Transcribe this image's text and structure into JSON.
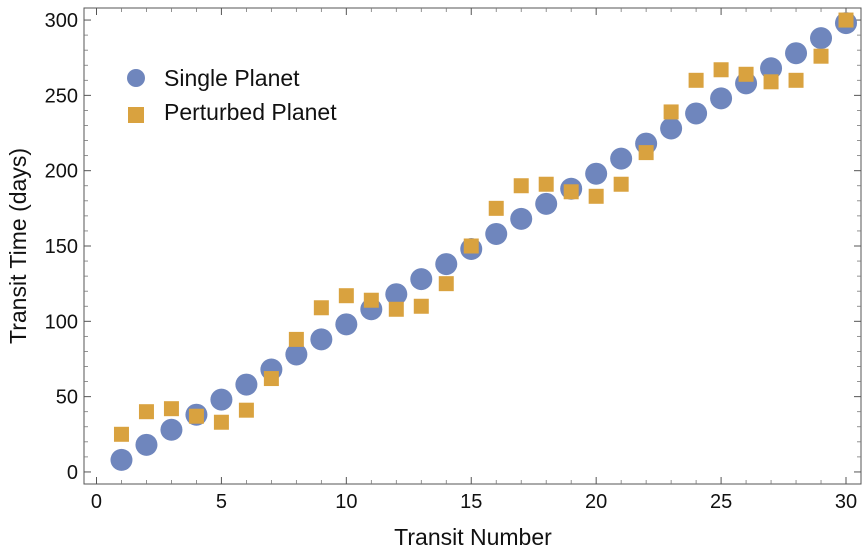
{
  "chart_data": {
    "type": "scatter",
    "title": "",
    "xlabel": "Transit Number",
    "ylabel": "Transit Time (days)",
    "xlim": [
      -0.5,
      30.6
    ],
    "ylim": [
      -8,
      308
    ],
    "xticks": [
      0,
      5,
      10,
      15,
      20,
      25,
      30
    ],
    "yticks": [
      0,
      50,
      100,
      150,
      200,
      250,
      300
    ],
    "grid": false,
    "legend_position": "top-left",
    "series": [
      {
        "name": "Single Planet",
        "marker": "circle",
        "color": "#6f86bd",
        "x": [
          1,
          2,
          3,
          4,
          5,
          6,
          7,
          8,
          9,
          10,
          11,
          12,
          13,
          14,
          15,
          16,
          17,
          18,
          19,
          20,
          21,
          22,
          23,
          24,
          25,
          26,
          27,
          28,
          29,
          30
        ],
        "y": [
          8,
          18,
          28,
          38,
          48,
          58,
          68,
          78,
          88,
          98,
          108,
          118,
          128,
          138,
          148,
          158,
          168,
          178,
          188,
          198,
          208,
          218,
          228,
          238,
          248,
          258,
          268,
          278,
          288,
          298
        ]
      },
      {
        "name": "Perturbed Planet",
        "marker": "square",
        "color": "#d9a23f",
        "x": [
          1,
          2,
          3,
          4,
          5,
          6,
          7,
          8,
          9,
          10,
          11,
          12,
          13,
          14,
          15,
          16,
          17,
          18,
          19,
          20,
          21,
          22,
          23,
          24,
          25,
          26,
          27,
          28,
          29,
          30
        ],
        "y": [
          25,
          40,
          42,
          37,
          33,
          41,
          62,
          88,
          109,
          117,
          114,
          108,
          110,
          125,
          150,
          175,
          190,
          191,
          186,
          183,
          191,
          212,
          239,
          260,
          267,
          264,
          259,
          260,
          276,
          300
        ]
      }
    ]
  }
}
